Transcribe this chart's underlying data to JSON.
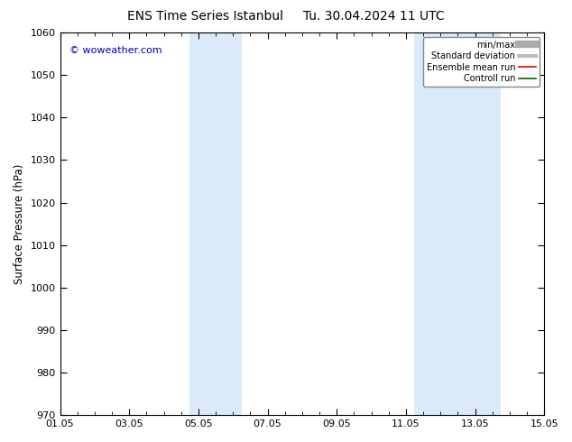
{
  "title": "ENS Time Series Istanbul     Tu. 30.04.2024 11 UTC",
  "ylabel": "Surface Pressure (hPa)",
  "ylim": [
    970,
    1060
  ],
  "yticks": [
    970,
    980,
    990,
    1000,
    1010,
    1020,
    1030,
    1040,
    1050,
    1060
  ],
  "xtick_labels": [
    "01.05",
    "03.05",
    "05.05",
    "07.05",
    "09.05",
    "11.05",
    "13.05",
    "15.05"
  ],
  "xtick_positions": [
    0,
    2,
    4,
    6,
    8,
    10,
    12,
    14
  ],
  "xlim": [
    0,
    14
  ],
  "shade_bands": [
    {
      "xmin": 3.75,
      "xmax": 4.5,
      "color": "#daeaf8"
    },
    {
      "xmin": 4.5,
      "xmax": 5.25,
      "color": "#daeaf8"
    },
    {
      "xmin": 10.25,
      "xmax": 11.0,
      "color": "#daeaf8"
    },
    {
      "xmin": 11.0,
      "xmax": 12.75,
      "color": "#daeaf8"
    }
  ],
  "watermark": "© woweather.com",
  "watermark_color": "#0000bb",
  "legend_items": [
    {
      "label": "min/max",
      "color": "#aaaaaa",
      "lw": 6
    },
    {
      "label": "Standard deviation",
      "color": "#bbbbbb",
      "lw": 3
    },
    {
      "label": "Ensemble mean run",
      "color": "#dd0000",
      "lw": 1.2
    },
    {
      "label": "Controll run",
      "color": "#006600",
      "lw": 1.2
    }
  ],
  "background_color": "#ffffff",
  "title_fontsize": 10,
  "tick_fontsize": 8,
  "ylabel_fontsize": 8.5
}
